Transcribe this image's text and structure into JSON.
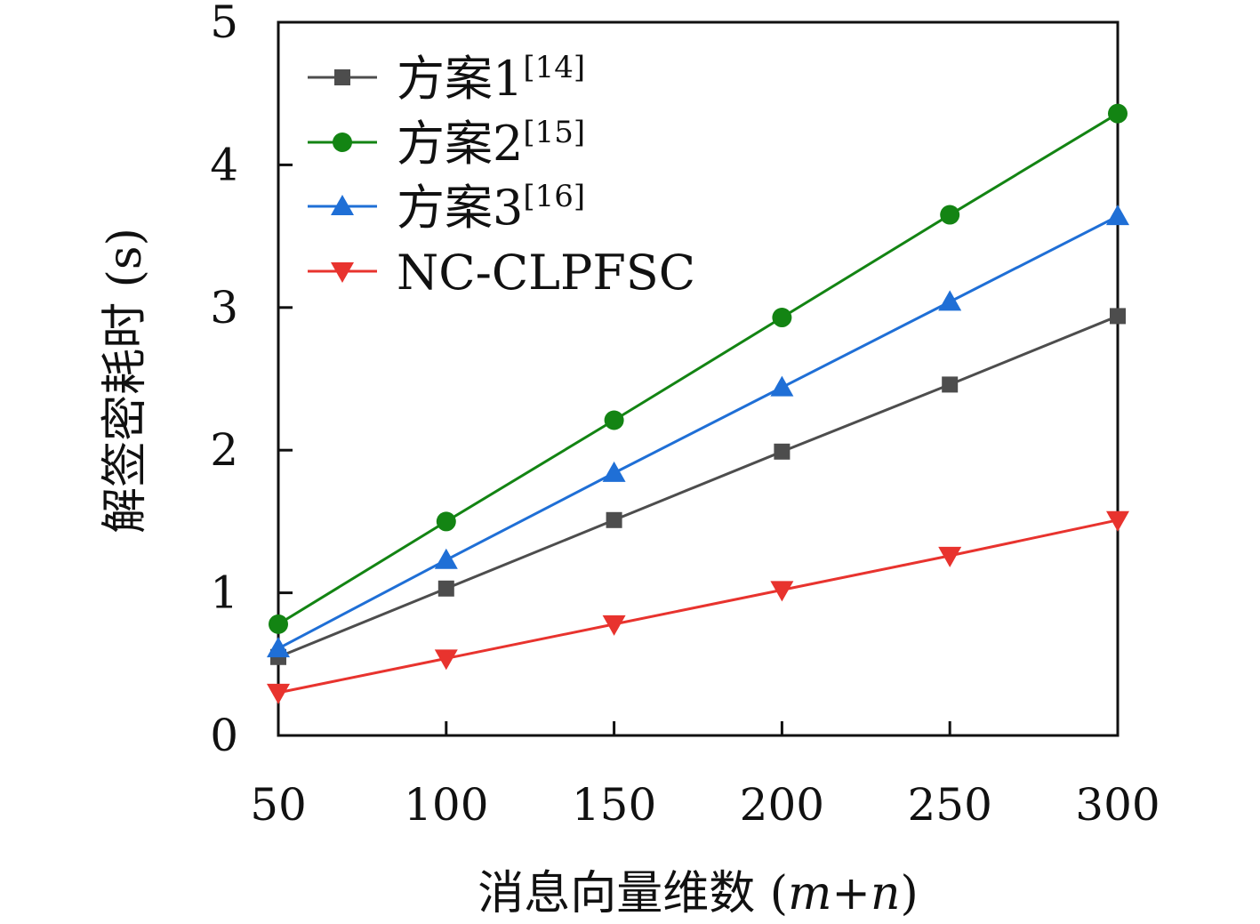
{
  "chart_data": {
    "type": "line",
    "xlabel": "消息向量维数 (m+n)",
    "xlabel_prefix": "消息向量维数 (",
    "xlabel_var": "m+n",
    "xlabel_suffix": ")",
    "ylabel": "解签密耗时 (s)",
    "x": [
      50,
      100,
      150,
      200,
      250,
      300
    ],
    "xlim": [
      50,
      300
    ],
    "ylim": [
      0,
      5
    ],
    "yticks": [
      0,
      1,
      2,
      3,
      4,
      5
    ],
    "grid": false,
    "legend_position": "top-left",
    "series": [
      {
        "name": "方案1[14]",
        "label": "方案1",
        "ref": "[14]",
        "marker": "square",
        "color": "#4d4d4d",
        "values": [
          0.55,
          1.03,
          1.51,
          1.99,
          2.46,
          2.94
        ]
      },
      {
        "name": "方案2[15]",
        "label": "方案2",
        "ref": "[15]",
        "marker": "circle",
        "color": "#138413",
        "values": [
          0.78,
          1.5,
          2.21,
          2.93,
          3.65,
          4.36
        ]
      },
      {
        "name": "方案3[16]",
        "label": "方案3",
        "ref": "[16]",
        "marker": "triangle-up",
        "color": "#1f6fd6",
        "values": [
          0.61,
          1.23,
          1.84,
          2.44,
          3.04,
          3.64
        ]
      },
      {
        "name": "NC-CLPFSC",
        "label": "NC-CLPFSC",
        "ref": "",
        "marker": "triangle-down",
        "color": "#e8332e",
        "values": [
          0.3,
          0.54,
          0.78,
          1.02,
          1.26,
          1.51
        ]
      }
    ]
  }
}
